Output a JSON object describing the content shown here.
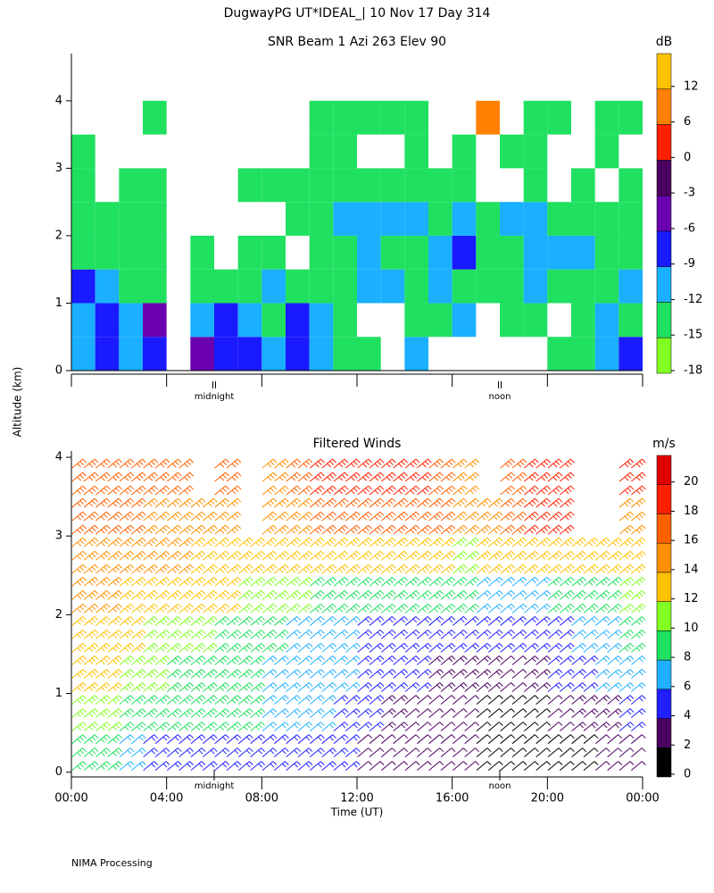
{
  "title": "DugwayPG UT*IDEAL_|  10 Nov 17 Day 314",
  "y_label": "Altitude (km)",
  "footer": "NIMA Processing",
  "chart_data": [
    {
      "type": "heatmap",
      "title": "SNR Beam 1 Azi 263 Elev 90",
      "colorbar_label": "dB",
      "xlim": [
        0,
        24
      ],
      "ylim": [
        0,
        4.7
      ],
      "yticks": [
        0,
        1,
        2,
        3,
        4
      ],
      "annotations": [
        {
          "text": "midnight",
          "x": 6
        },
        {
          "text": "noon",
          "x": 18
        }
      ],
      "times": [
        0,
        1,
        2,
        3,
        4,
        5,
        6,
        7,
        8,
        9,
        10,
        11,
        12,
        13,
        14,
        15,
        16,
        17,
        18,
        19,
        20,
        21,
        22,
        23
      ],
      "altitudes": [
        0.25,
        0.75,
        1.25,
        1.75,
        2.25,
        2.75,
        3.25,
        3.75
      ],
      "values": [
        [
          -12,
          -9,
          -12,
          -9,
          null,
          -6,
          -9,
          -9,
          -12,
          -9,
          -12,
          -15,
          -15,
          null,
          -12,
          null,
          null,
          null,
          null,
          null,
          -15,
          -15,
          -12,
          -9
        ],
        [
          -12,
          -9,
          -12,
          -6,
          null,
          -12,
          -9,
          -12,
          -15,
          -9,
          -12,
          -15,
          null,
          null,
          -15,
          -15,
          -12,
          null,
          -15,
          -15,
          null,
          -15,
          -12,
          -15
        ],
        [
          -9,
          -12,
          -15,
          -15,
          null,
          -15,
          -15,
          -15,
          -12,
          -15,
          -15,
          -15,
          -12,
          -12,
          -15,
          -12,
          -15,
          -15,
          -15,
          -12,
          -15,
          -15,
          -15,
          -12
        ],
        [
          -15,
          -15,
          -15,
          -15,
          null,
          -15,
          null,
          -15,
          -15,
          null,
          -15,
          -15,
          -12,
          -15,
          -15,
          -12,
          -9,
          -15,
          -15,
          -12,
          -12,
          -12,
          -15,
          -15
        ],
        [
          -15,
          -15,
          -15,
          -15,
          null,
          null,
          null,
          null,
          null,
          -15,
          -15,
          -12,
          -12,
          -12,
          -12,
          -15,
          -12,
          -15,
          -12,
          -12,
          -15,
          -15,
          -15,
          -15
        ],
        [
          -15,
          null,
          -15,
          -15,
          null,
          null,
          null,
          -15,
          -15,
          -15,
          -15,
          -15,
          -15,
          -15,
          -15,
          -15,
          -15,
          null,
          null,
          -15,
          null,
          -15,
          null,
          -15
        ],
        [
          -15,
          null,
          null,
          null,
          null,
          null,
          null,
          null,
          null,
          null,
          -15,
          -15,
          null,
          null,
          -15,
          null,
          -15,
          null,
          -15,
          -15,
          null,
          null,
          -15,
          null
        ],
        [
          null,
          null,
          null,
          -15,
          null,
          null,
          null,
          null,
          null,
          null,
          -15,
          -15,
          -15,
          -15,
          -15,
          null,
          null,
          9,
          null,
          -15,
          -15,
          null,
          -15,
          -15
        ]
      ],
      "colorbar_ticks": [
        12,
        6,
        0,
        -3,
        -6,
        -9,
        -12,
        -15,
        -18
      ],
      "colorbar_colors": [
        "#ffc000",
        "#ff8000",
        "#ff2000",
        "#4b0060",
        "#6a00b0",
        "#1a1aff",
        "#1ab0ff",
        "#20e060",
        "#80ff20"
      ]
    },
    {
      "type": "barbs",
      "title": "Filtered Winds",
      "colorbar_label": "m/s",
      "x_label": "Time (UT)",
      "xlim": [
        0,
        24
      ],
      "ylim": [
        -0.06,
        4.08
      ],
      "yticks": [
        0,
        1,
        2,
        3,
        4
      ],
      "xticks": [
        {
          "value": 0,
          "label": "00:00"
        },
        {
          "value": 4,
          "label": "04:00"
        },
        {
          "value": 8,
          "label": "08:00"
        },
        {
          "value": 12,
          "label": "12:00"
        },
        {
          "value": 16,
          "label": "16:00"
        },
        {
          "value": 20,
          "label": "20:00"
        },
        {
          "value": 24,
          "label": "00:00"
        }
      ],
      "annotations": [
        {
          "text": "midnight",
          "x": 6
        },
        {
          "text": "noon",
          "x": 18
        }
      ],
      "times": [
        0,
        1,
        2,
        3,
        4,
        5,
        6,
        7,
        8,
        9,
        10,
        11,
        12,
        13,
        14,
        15,
        16,
        17,
        18,
        19,
        20,
        21,
        22,
        23
      ],
      "altitudes": [
        0.25,
        0.75,
        1.25,
        1.75,
        2.25,
        2.75,
        3.25,
        3.75
      ],
      "values": [
        [
          8,
          8,
          6,
          4,
          4,
          4,
          4,
          4,
          4,
          4,
          4,
          4,
          2,
          2,
          2,
          2,
          2,
          1,
          1,
          1,
          1,
          1,
          2,
          2
        ],
        [
          10,
          10,
          9,
          8,
          8,
          9,
          8,
          8,
          7,
          7,
          6,
          5,
          4,
          3,
          2,
          2,
          2,
          1,
          1,
          1,
          2,
          3,
          3,
          4
        ],
        [
          12,
          12,
          11,
          10,
          9,
          9,
          9,
          8,
          7,
          7,
          6,
          6,
          5,
          4,
          4,
          3,
          3,
          3,
          2,
          3,
          4,
          5,
          6,
          7
        ],
        [
          13,
          12,
          12,
          11,
          11,
          10,
          8,
          9,
          8,
          7,
          6,
          6,
          5,
          5,
          5,
          5,
          4,
          4,
          4,
          4,
          5,
          6,
          7,
          8
        ],
        [
          14,
          14,
          13,
          13,
          12,
          12,
          12,
          10,
          10,
          10,
          9,
          8,
          8,
          9,
          9,
          9,
          8,
          7,
          7,
          7,
          8,
          9,
          9,
          10
        ],
        [
          15,
          15,
          14,
          14,
          14,
          13,
          13,
          12,
          12,
          12,
          13,
          13,
          13,
          12,
          12,
          12,
          11,
          12,
          13,
          13,
          12,
          12,
          12,
          12
        ],
        [
          16,
          16,
          16,
          15,
          14,
          14,
          14,
          null,
          14,
          14,
          16,
          17,
          17,
          17,
          17,
          16,
          15,
          15,
          17,
          18,
          18,
          null,
          null,
          14
        ],
        [
          16,
          16,
          16,
          16,
          16,
          null,
          16,
          null,
          15,
          16,
          18,
          19,
          19,
          18,
          18,
          16,
          15,
          null,
          17,
          18,
          18,
          null,
          null,
          18
        ]
      ],
      "colorbar_ticks": [
        0,
        2,
        4,
        6,
        8,
        10,
        12,
        14,
        16,
        18,
        20
      ],
      "colorbar_colors": [
        "#000000",
        "#4b0060",
        "#2020ff",
        "#20b0ff",
        "#20e060",
        "#80ff20",
        "#ffc000",
        "#ff9000",
        "#ff6000",
        "#ff2000",
        "#e00000"
      ]
    }
  ]
}
